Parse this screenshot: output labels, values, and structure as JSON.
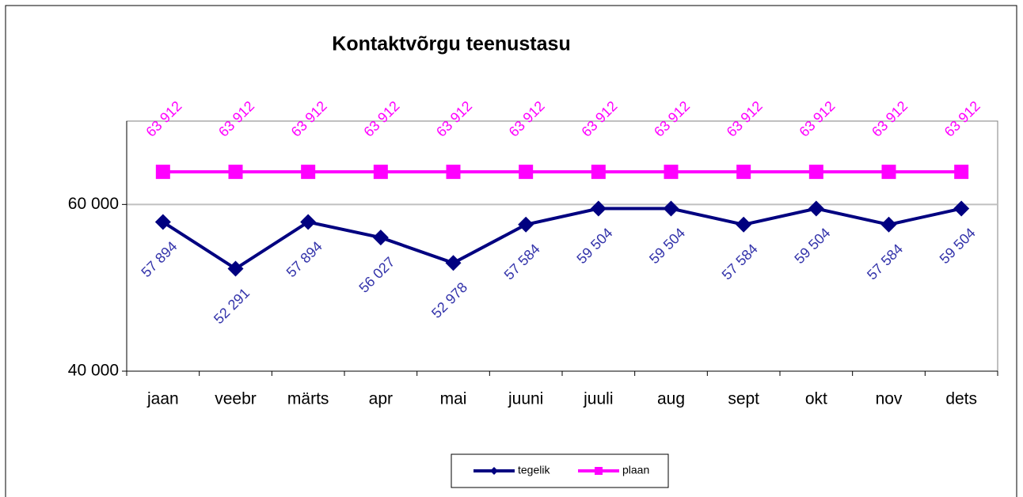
{
  "chart_data": {
    "type": "line",
    "title": "Kontaktvõrgu teenustasu",
    "categories": [
      "jaan",
      "veebr",
      "märts",
      "apr",
      "mai",
      "juuni",
      "juuli",
      "aug",
      "sept",
      "okt",
      "nov",
      "dets"
    ],
    "series": [
      {
        "name": "tegelik",
        "color": "#000080",
        "marker": "diamond",
        "values": [
          57894,
          52291,
          57894,
          56027,
          52978,
          57584,
          59504,
          59504,
          57584,
          59504,
          57584,
          59504
        ],
        "value_labels": [
          "57 894",
          "52 291",
          "57 894",
          "56 027",
          "52 978",
          "57 584",
          "59 504",
          "59 504",
          "57 584",
          "59 504",
          "57 584",
          "59 504"
        ]
      },
      {
        "name": "plaan",
        "color": "#ff00ff",
        "marker": "square",
        "values": [
          63912,
          63912,
          63912,
          63912,
          63912,
          63912,
          63912,
          63912,
          63912,
          63912,
          63912,
          63912
        ],
        "value_labels": [
          "63 912",
          "63 912",
          "63 912",
          "63 912",
          "63 912",
          "63 912",
          "63 912",
          "63 912",
          "63 912",
          "63 912",
          "63 912",
          "63 912"
        ]
      }
    ],
    "ylim": [
      40000,
      70000
    ],
    "yticks": [
      {
        "value": 40000,
        "label": "40 000"
      },
      {
        "value": 60000,
        "label": "60 000"
      }
    ],
    "grid": true,
    "legend": "bottom"
  }
}
